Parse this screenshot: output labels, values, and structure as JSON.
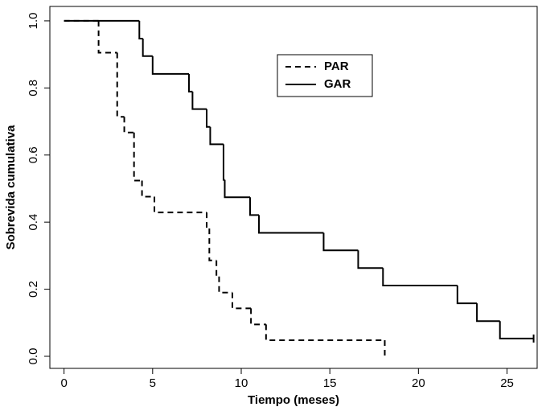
{
  "chart_data": {
    "type": "step",
    "xlabel": "Tiempo (meses)",
    "ylabel": "Sobrevida cumulativa",
    "xlim": [
      -0.8,
      26.7
    ],
    "ylim": [
      -0.036,
      1.043
    ],
    "xticks": [
      0,
      5,
      10,
      15,
      20,
      25
    ],
    "yticks": [
      {
        "value": 0,
        "label": "0.0"
      },
      {
        "value": 0.2,
        "label": "0.2"
      },
      {
        "value": 0.4,
        "label": "0.4"
      },
      {
        "value": 0.6,
        "label": "0.6"
      },
      {
        "value": 0.8,
        "label": "0.8"
      },
      {
        "value": 1,
        "label": "1.0"
      }
    ],
    "legend": "top",
    "series": [
      {
        "name": "PAR",
        "color": "#000000",
        "line_style": "dashed",
        "x": [
          0,
          1.95,
          3.0,
          3.4,
          3.95,
          4.4,
          5.1,
          8.05,
          8.2,
          8.6,
          8.75,
          9.5,
          10.55,
          11.4,
          18.1
        ],
        "values": [
          1,
          0.905,
          0.714,
          0.667,
          0.524,
          0.476,
          0.429,
          0.381,
          0.286,
          0.238,
          0.19,
          0.143,
          0.095,
          0.048,
          0
        ]
      },
      {
        "name": "GAR",
        "color": "#000000",
        "line_style": "solid",
        "x": [
          0,
          4.25,
          4.45,
          5.0,
          7.05,
          7.25,
          8.05,
          8.25,
          9.0,
          9.07,
          10.5,
          11.0,
          14.65,
          16.6,
          18.0,
          22.2,
          23.3,
          24.6,
          26.5
        ],
        "values": [
          1,
          0.947,
          0.895,
          0.842,
          0.789,
          0.737,
          0.684,
          0.632,
          0.526,
          0.474,
          0.421,
          0.368,
          0.316,
          0.263,
          0.211,
          0.158,
          0.105,
          0.053,
          0.053
        ]
      }
    ]
  }
}
